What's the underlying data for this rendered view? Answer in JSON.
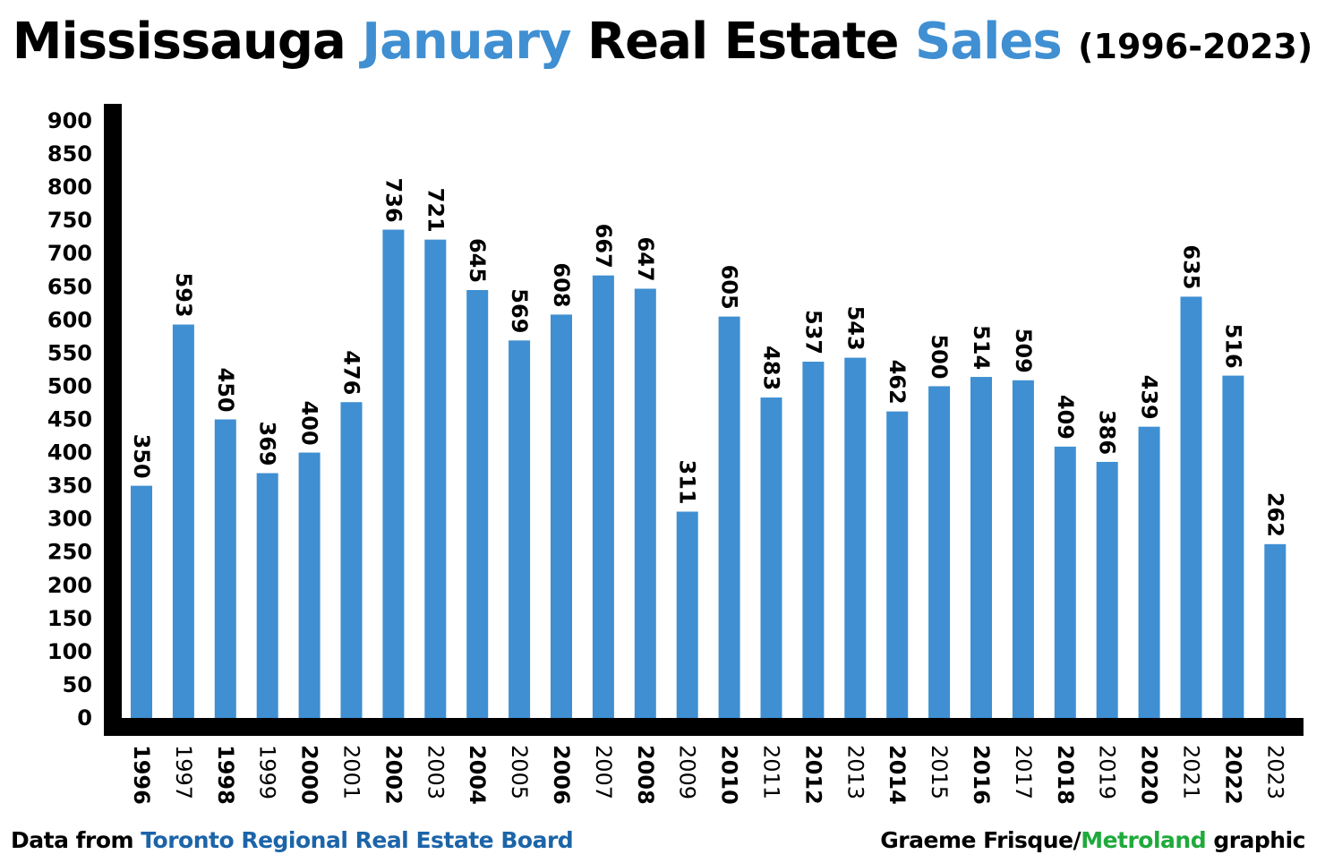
{
  "title": {
    "w1": "Mississauga",
    "w2": "January",
    "w3": "Real Estate",
    "w4": "Sales",
    "years": "(1996-2023)"
  },
  "colors": {
    "bar": "#3f8fd2",
    "accent": "#3f8fd2",
    "axis": "#000000",
    "source": "#1c64a8",
    "brand": "#1faa3c"
  },
  "footer": {
    "source_prefix": "Data from ",
    "source_name": "Toronto Regional Real Estate Board",
    "credit_name": "Graeme Frisque/",
    "credit_brand": "Metroland",
    "credit_suffix": " graphic"
  },
  "chart_data": {
    "type": "bar",
    "title": "Mississauga January Real Estate Sales (1996-2023)",
    "categories": [
      "1996",
      "1997",
      "1998",
      "1999",
      "2000",
      "2001",
      "2002",
      "2003",
      "2004",
      "2005",
      "2006",
      "2007",
      "2008",
      "2009",
      "2010",
      "2011",
      "2012",
      "2013",
      "2014",
      "2015",
      "2016",
      "2017",
      "2018",
      "2019",
      "2020",
      "2021",
      "2022",
      "2023"
    ],
    "values": [
      350,
      593,
      450,
      369,
      400,
      476,
      736,
      721,
      645,
      569,
      608,
      667,
      647,
      311,
      605,
      483,
      537,
      543,
      462,
      500,
      514,
      509,
      409,
      386,
      439,
      635,
      516,
      262
    ],
    "yticks": [
      0,
      50,
      100,
      150,
      200,
      250,
      300,
      350,
      400,
      450,
      500,
      550,
      600,
      650,
      700,
      750,
      800,
      850,
      900
    ],
    "ylim": [
      0,
      900
    ],
    "xlabel": "",
    "ylabel": "",
    "grid": false,
    "legend": "none"
  }
}
